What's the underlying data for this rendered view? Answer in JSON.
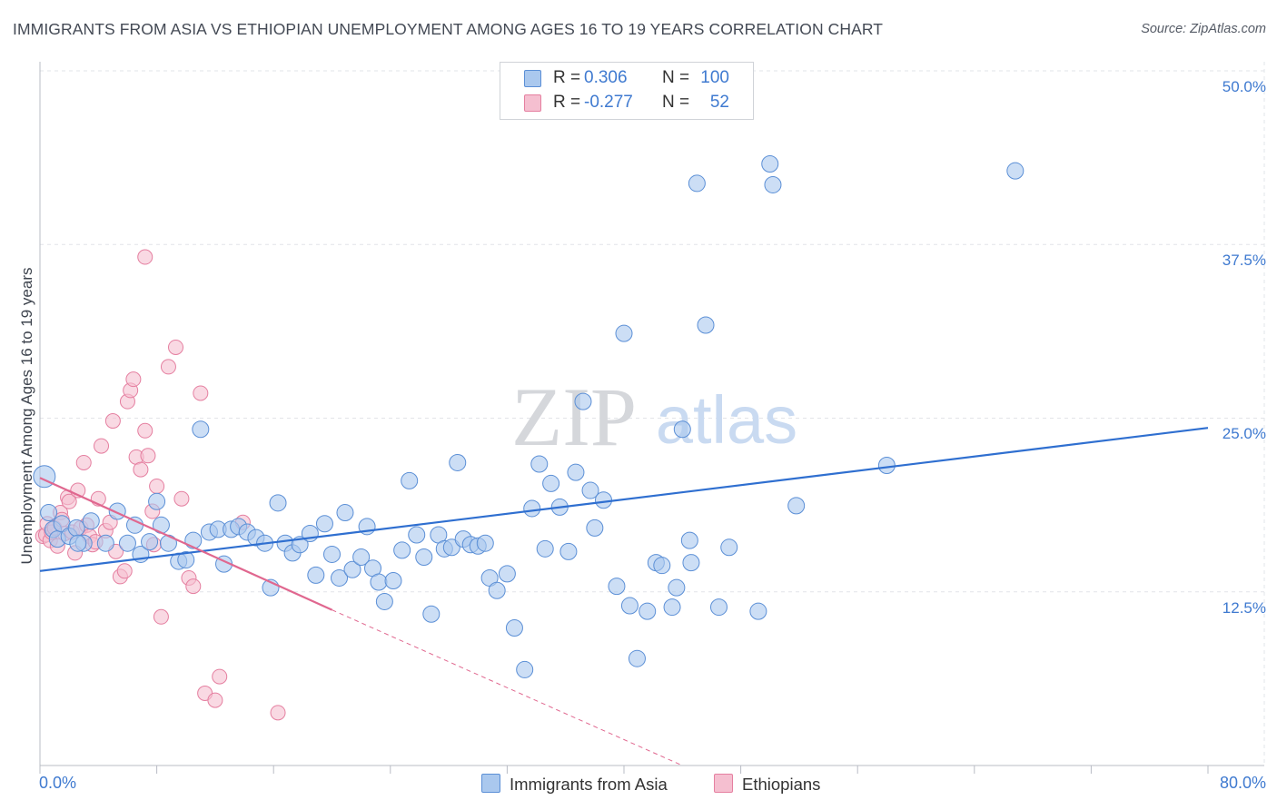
{
  "title": "IMMIGRANTS FROM ASIA VS ETHIOPIAN UNEMPLOYMENT AMONG AGES 16 TO 19 YEARS CORRELATION CHART",
  "source": "Source: ZipAtlas.com",
  "watermark": {
    "zip": "ZIP",
    "atlas": "atlas"
  },
  "legend": {
    "rows": [
      {
        "r_label": "R =",
        "r_value": "0.306",
        "n_label": "N =",
        "n_value": "100"
      },
      {
        "r_label": "R =",
        "r_value": "-0.277",
        "n_label": "N =",
        "n_value": "52"
      }
    ]
  },
  "bottom_legend": [
    "Immigrants from Asia",
    "Ethiopians"
  ],
  "colors": {
    "blue_fill": "#aac8ee",
    "blue_stroke": "#5b8fd6",
    "blue_line": "#2f6fd0",
    "pink_fill": "#f5bfd0",
    "pink_stroke": "#e57fa0",
    "pink_line": "#e0678f",
    "grid": "#e2e4e8",
    "axis_text": "#3f7ad0"
  },
  "chart_data": {
    "type": "scatter",
    "title": "IMMIGRANTS FROM ASIA VS ETHIOPIAN UNEMPLOYMENT AMONG AGES 16 TO 19 YEARS CORRELATION CHART",
    "xlabel": "",
    "ylabel": "Unemployment Among Ages 16 to 19 years",
    "xlim": [
      0,
      80
    ],
    "ylim": [
      0,
      50
    ],
    "x_tick_labels": [
      "0.0%",
      "80.0%"
    ],
    "y_tick_labels": [
      "12.5%",
      "25.0%",
      "37.5%",
      "50.0%"
    ],
    "y_ticks": [
      12.5,
      25.0,
      37.5,
      50.0
    ],
    "series": [
      {
        "name": "Immigrants from Asia",
        "r": 0.306,
        "n": 100,
        "trend": {
          "x": [
            0,
            80
          ],
          "y": [
            14.0,
            24.3
          ]
        },
        "points": [
          [
            0.3,
            20.8
          ],
          [
            0.6,
            18.2
          ],
          [
            0.9,
            17.0
          ],
          [
            1.2,
            16.3
          ],
          [
            1.5,
            17.4
          ],
          [
            2.0,
            16.5
          ],
          [
            2.5,
            17.1
          ],
          [
            3.0,
            16.0
          ],
          [
            3.5,
            17.6
          ],
          [
            4.5,
            16.0
          ],
          [
            5.3,
            18.3
          ],
          [
            6.0,
            16.0
          ],
          [
            6.9,
            15.2
          ],
          [
            7.5,
            16.1
          ],
          [
            8.0,
            19.0
          ],
          [
            8.3,
            17.3
          ],
          [
            8.8,
            16.0
          ],
          [
            9.5,
            14.7
          ],
          [
            10.0,
            14.8
          ],
          [
            10.5,
            16.2
          ],
          [
            11.0,
            24.2
          ],
          [
            11.6,
            16.8
          ],
          [
            12.2,
            17.0
          ],
          [
            12.6,
            14.5
          ],
          [
            13.1,
            17.0
          ],
          [
            13.6,
            17.2
          ],
          [
            14.2,
            16.8
          ],
          [
            14.8,
            16.4
          ],
          [
            15.4,
            16.0
          ],
          [
            15.8,
            12.8
          ],
          [
            16.3,
            18.9
          ],
          [
            16.8,
            16.0
          ],
          [
            17.3,
            15.3
          ],
          [
            17.8,
            15.9
          ],
          [
            18.5,
            16.7
          ],
          [
            18.9,
            13.7
          ],
          [
            19.5,
            17.4
          ],
          [
            20.0,
            15.2
          ],
          [
            20.5,
            13.5
          ],
          [
            20.9,
            18.2
          ],
          [
            21.4,
            14.1
          ],
          [
            22.0,
            15.0
          ],
          [
            22.4,
            17.2
          ],
          [
            22.8,
            14.2
          ],
          [
            23.2,
            13.2
          ],
          [
            23.6,
            11.8
          ],
          [
            24.2,
            13.3
          ],
          [
            24.8,
            15.5
          ],
          [
            25.3,
            20.5
          ],
          [
            25.8,
            16.6
          ],
          [
            26.3,
            15.0
          ],
          [
            26.8,
            10.9
          ],
          [
            27.3,
            16.6
          ],
          [
            27.7,
            15.6
          ],
          [
            28.2,
            15.7
          ],
          [
            28.6,
            21.8
          ],
          [
            29.0,
            16.3
          ],
          [
            29.5,
            15.9
          ],
          [
            30.0,
            15.8
          ],
          [
            30.5,
            16.0
          ],
          [
            30.8,
            13.5
          ],
          [
            31.3,
            12.6
          ],
          [
            32.0,
            13.8
          ],
          [
            32.5,
            9.9
          ],
          [
            33.2,
            6.9
          ],
          [
            33.7,
            18.5
          ],
          [
            34.2,
            21.7
          ],
          [
            34.6,
            15.6
          ],
          [
            35.0,
            20.3
          ],
          [
            35.6,
            18.6
          ],
          [
            36.2,
            15.4
          ],
          [
            36.7,
            21.1
          ],
          [
            37.2,
            26.2
          ],
          [
            37.7,
            19.8
          ],
          [
            38.0,
            17.1
          ],
          [
            38.6,
            19.1
          ],
          [
            39.5,
            12.9
          ],
          [
            40.0,
            31.1
          ],
          [
            40.4,
            11.5
          ],
          [
            40.9,
            7.7
          ],
          [
            41.6,
            11.1
          ],
          [
            42.2,
            14.6
          ],
          [
            42.6,
            14.4
          ],
          [
            43.3,
            11.4
          ],
          [
            43.6,
            12.8
          ],
          [
            44.0,
            24.2
          ],
          [
            44.5,
            16.2
          ],
          [
            44.6,
            14.6
          ],
          [
            45.0,
            41.9
          ],
          [
            45.6,
            31.7
          ],
          [
            46.5,
            11.4
          ],
          [
            47.2,
            15.7
          ],
          [
            49.2,
            11.1
          ],
          [
            50.0,
            43.3
          ],
          [
            50.2,
            41.8
          ],
          [
            51.8,
            18.7
          ],
          [
            58.0,
            21.6
          ],
          [
            66.8,
            42.8
          ],
          [
            2.6,
            16.0
          ],
          [
            6.5,
            17.3
          ]
        ]
      },
      {
        "name": "Ethiopians",
        "r": -0.277,
        "n": 52,
        "trend": {
          "x": [
            0,
            20
          ],
          "y": [
            20.7,
            11.2
          ]
        },
        "trend_extension": {
          "x": [
            20,
            44
          ],
          "y": [
            11.2,
            0
          ]
        },
        "points": [
          [
            0.2,
            16.5
          ],
          [
            0.4,
            16.6
          ],
          [
            0.5,
            17.4
          ],
          [
            0.7,
            16.2
          ],
          [
            0.8,
            16.8
          ],
          [
            1.0,
            17.1
          ],
          [
            1.2,
            15.8
          ],
          [
            1.4,
            18.2
          ],
          [
            1.5,
            17.7
          ],
          [
            1.7,
            16.7
          ],
          [
            1.9,
            19.3
          ],
          [
            2.0,
            19.0
          ],
          [
            2.2,
            16.8
          ],
          [
            2.4,
            15.3
          ],
          [
            2.6,
            19.8
          ],
          [
            2.8,
            17.1
          ],
          [
            3.0,
            21.8
          ],
          [
            3.2,
            17.3
          ],
          [
            3.4,
            16.5
          ],
          [
            3.6,
            15.9
          ],
          [
            3.8,
            16.1
          ],
          [
            4.0,
            19.2
          ],
          [
            4.2,
            23.0
          ],
          [
            4.5,
            16.9
          ],
          [
            4.8,
            17.5
          ],
          [
            5.0,
            24.8
          ],
          [
            5.2,
            15.4
          ],
          [
            5.5,
            13.6
          ],
          [
            5.8,
            14.0
          ],
          [
            6.0,
            26.2
          ],
          [
            6.2,
            27.0
          ],
          [
            6.4,
            27.8
          ],
          [
            6.6,
            22.2
          ],
          [
            6.9,
            21.3
          ],
          [
            7.2,
            24.1
          ],
          [
            7.4,
            22.3
          ],
          [
            7.7,
            18.3
          ],
          [
            7.8,
            15.9
          ],
          [
            8.0,
            20.1
          ],
          [
            8.3,
            10.7
          ],
          [
            8.8,
            28.7
          ],
          [
            9.3,
            30.1
          ],
          [
            9.7,
            19.2
          ],
          [
            10.2,
            13.5
          ],
          [
            10.5,
            12.9
          ],
          [
            11.0,
            26.8
          ],
          [
            11.3,
            5.2
          ],
          [
            12.0,
            4.7
          ],
          [
            12.3,
            6.4
          ],
          [
            13.9,
            17.5
          ],
          [
            16.3,
            3.8
          ],
          [
            7.2,
            36.6
          ]
        ]
      }
    ]
  }
}
